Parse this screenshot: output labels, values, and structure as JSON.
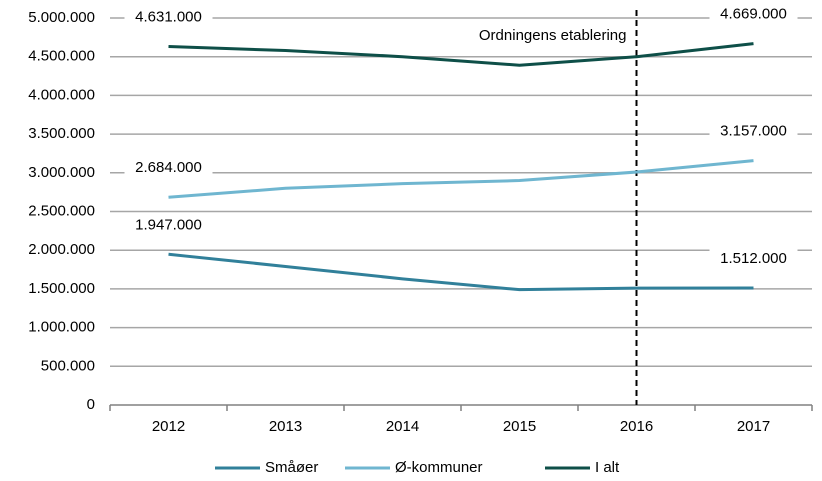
{
  "chart_data": {
    "type": "line",
    "categories": [
      "2012",
      "2013",
      "2014",
      "2015",
      "2016",
      "2017"
    ],
    "series": [
      {
        "name": "Småøer",
        "color": "#31809a",
        "values": [
          1947000,
          1790000,
          1630000,
          1490000,
          1510000,
          1512000
        ],
        "value_labels": [
          "1.947.000",
          null,
          null,
          null,
          null,
          "1.512.000"
        ]
      },
      {
        "name": "Ø-kommuner",
        "color": "#6fb6d0",
        "values": [
          2684000,
          2800000,
          2860000,
          2900000,
          3010000,
          3157000
        ],
        "value_labels": [
          "2.684.000",
          null,
          null,
          null,
          null,
          "3.157.000"
        ]
      },
      {
        "name": "I alt",
        "color": "#0e4f48",
        "values": [
          4631000,
          4580000,
          4500000,
          4390000,
          4500000,
          4669000
        ],
        "value_labels": [
          "4.631.000",
          null,
          null,
          null,
          null,
          "4.669.000"
        ]
      }
    ],
    "ylim": [
      0,
      5000000
    ],
    "yticks": [
      0,
      {
        "value": 500000,
        "label": "500.000"
      },
      {
        "value": 1000000,
        "label": "1.000.000"
      },
      {
        "value": 1500000,
        "label": "1.500.000"
      },
      {
        "value": 2000000,
        "label": "2.000.000"
      },
      {
        "value": 2500000,
        "label": "2.500.000"
      },
      {
        "value": 3000000,
        "label": "3.000.000"
      },
      {
        "value": 3500000,
        "label": "3.500.000"
      },
      {
        "value": 4000000,
        "label": "4.000.000"
      },
      {
        "value": 4500000,
        "label": "4.500.000"
      },
      {
        "value": 5000000,
        "label": "5.000.000"
      }
    ],
    "grid": true,
    "legend": "bottom",
    "annotations": [
      {
        "text": "Ordningens etablering",
        "category": "2016"
      }
    ]
  }
}
